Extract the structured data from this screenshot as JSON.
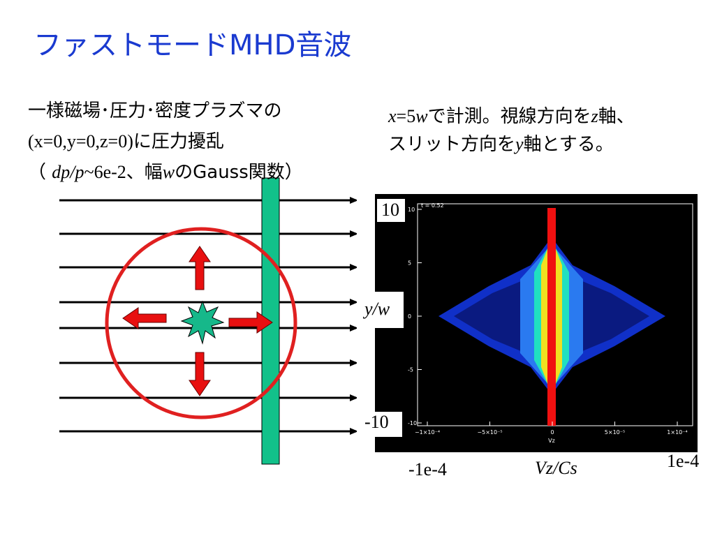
{
  "title": "ファストモードMHD音波",
  "left_text": [
    [
      "一様磁場･圧力･密度プラズマの"
    ],
    [
      "(x=0,y=0,z=0)",
      "に圧力擾乱"
    ],
    [
      "（ ",
      "dp/p",
      "~6e-2、幅",
      "w",
      "のGauss関数）"
    ]
  ],
  "right_text": [
    [
      "x",
      "=5",
      "w",
      "で計測。視線方向を",
      "z",
      "軸、"
    ],
    [
      "スリット方向を",
      "y",
      "軸とする。"
    ]
  ],
  "plot": {
    "y_max_label": "10",
    "y_min_label": "-10",
    "y_label": "y/w",
    "x_min_label": "-1e-4",
    "x_label": "Vz/Cs",
    "x_max_label": "1e-4",
    "inner_title": "t = 0.52",
    "inner_yticks": [
      "10",
      "5",
      "0",
      "-5",
      "-10"
    ],
    "inner_xticks": [
      "−1×10⁻⁴",
      "−5×10⁻⁵",
      "0",
      "5×10⁻⁵",
      "1×10⁻⁴"
    ],
    "inner_xlabel": "Vz"
  }
}
